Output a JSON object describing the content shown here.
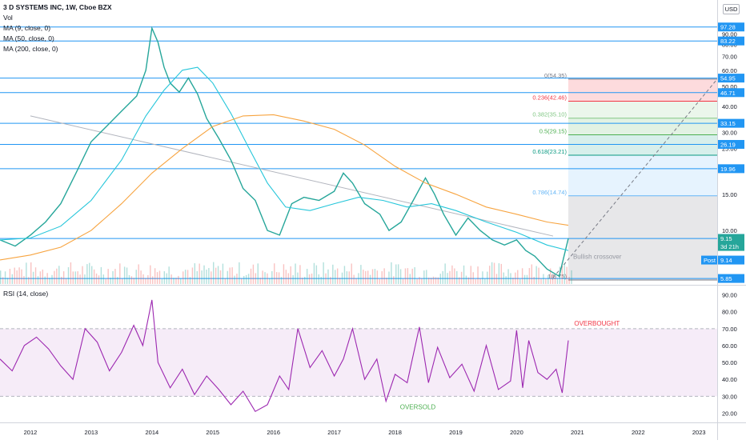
{
  "header": {
    "title": "3 D SYSTEMS INC, 1W, Cboe BZX",
    "indicators": [
      "Vol",
      "MA (9, close, 0)",
      "MA (50, close, 0)",
      "MA (200, close, 0)"
    ],
    "currency": "USD"
  },
  "rsi_header": "RSI (14, close)",
  "chart_data": {
    "type": "line",
    "title": "3 D SYSTEMS INC, 1W, Cboe BZX",
    "x_ticks": [
      "2012",
      "2013",
      "2014",
      "2015",
      "2016",
      "2017",
      "2018",
      "2019",
      "2020",
      "2021",
      "2022",
      "2023"
    ],
    "price_axis": {
      "scale": "log",
      "ticks": [
        "100.00",
        "90.00",
        "80.00",
        "70.00",
        "60.00",
        "50.00",
        "40.00",
        "30.00",
        "25.00",
        "20.00",
        "15.00",
        "10.00"
      ],
      "ylim": [
        5.5,
        110
      ]
    },
    "horizontal_levels": [
      {
        "label": "97.28",
        "value": 97.28
      },
      {
        "label": "83.22",
        "value": 83.22
      },
      {
        "label": "54.95",
        "value": 54.95
      },
      {
        "label": "46.71",
        "value": 46.71
      },
      {
        "label": "33.15",
        "value": 33.15
      },
      {
        "label": "26.19",
        "value": 26.19
      },
      {
        "label": "19.96",
        "value": 19.96
      },
      {
        "label": "9.15",
        "value": 9.15
      },
      {
        "label": "5.85",
        "value": 5.85
      }
    ],
    "price_tags": [
      {
        "label": "9.15",
        "value": 9.15
      },
      {
        "label": "3d 21h",
        "value": 8.2
      },
      {
        "label": "Post",
        "value": 7.2
      },
      {
        "label": "9.14",
        "value": 7.2
      }
    ],
    "fibonacci": [
      {
        "label": "0(54.35)",
        "value": 54.35,
        "color": "#787b86"
      },
      {
        "label": "0.236(42.46)",
        "value": 42.46,
        "color": "#f23645"
      },
      {
        "label": "0.382(35.10)",
        "value": 35.1,
        "color": "#81c784"
      },
      {
        "label": "0.5(29.15)",
        "value": 29.15,
        "color": "#4caf50"
      },
      {
        "label": "0.618(23.21)",
        "value": 23.21,
        "color": "#089981"
      },
      {
        "label": "0.786(14.74)",
        "value": 14.74,
        "color": "#64b5f6"
      },
      {
        "label": "1(5.75)",
        "value": 5.75,
        "color": "#787b86"
      }
    ],
    "annotation": "Bullish crossover",
    "series": [
      {
        "name": "Close",
        "color": "#26a69a",
        "x": [
          2011.5,
          2011.75,
          2012.0,
          2012.25,
          2012.5,
          2012.75,
          2013.0,
          2013.25,
          2013.5,
          2013.75,
          2013.9,
          2014.0,
          2014.1,
          2014.2,
          2014.3,
          2014.45,
          2014.6,
          2014.75,
          2014.9,
          2015.1,
          2015.3,
          2015.5,
          2015.7,
          2015.9,
          2016.1,
          2016.3,
          2016.5,
          2016.75,
          2017.0,
          2017.15,
          2017.3,
          2017.5,
          2017.75,
          2017.9,
          2018.1,
          2018.3,
          2018.5,
          2018.65,
          2018.8,
          2019.0,
          2019.2,
          2019.4,
          2019.6,
          2019.8,
          2020.0,
          2020.15,
          2020.3,
          2020.5,
          2020.7,
          2020.85
        ],
        "values": [
          9.0,
          8.4,
          9.5,
          11.0,
          13.5,
          19.0,
          27.0,
          32.0,
          38.0,
          45.0,
          60.0,
          96.0,
          82.0,
          62.0,
          52.0,
          47.0,
          55.0,
          46.0,
          35.0,
          28.0,
          22.0,
          16.0,
          14.0,
          10.0,
          9.5,
          13.5,
          14.5,
          14.0,
          15.5,
          19.0,
          17.0,
          13.5,
          12.0,
          10.0,
          11.0,
          14.0,
          18.0,
          15.0,
          12.0,
          9.5,
          11.5,
          10.0,
          9.0,
          8.5,
          9.0,
          8.0,
          7.5,
          6.5,
          6.0,
          9.15
        ]
      },
      {
        "name": "MA 50",
        "color": "#26c6da",
        "x": [
          2011.5,
          2012.0,
          2012.5,
          2013.0,
          2013.5,
          2013.9,
          2014.2,
          2014.5,
          2014.75,
          2015.0,
          2015.3,
          2015.6,
          2015.9,
          2016.2,
          2016.6,
          2017.0,
          2017.4,
          2017.8,
          2018.2,
          2018.6,
          2019.0,
          2019.5,
          2020.0,
          2020.5,
          2020.85
        ],
        "values": [
          9.0,
          9.2,
          10.5,
          14.0,
          22.0,
          36.0,
          48.0,
          60.0,
          62.0,
          52.0,
          37.0,
          25.0,
          17.0,
          13.0,
          12.5,
          13.5,
          14.5,
          14.0,
          13.0,
          13.5,
          12.5,
          11.0,
          9.8,
          8.5,
          8.0
        ]
      },
      {
        "name": "MA 200",
        "color": "#f7a440",
        "x": [
          2011.5,
          2012.0,
          2012.5,
          2013.0,
          2013.5,
          2014.0,
          2014.5,
          2015.0,
          2015.5,
          2016.0,
          2016.5,
          2017.0,
          2017.5,
          2018.0,
          2018.5,
          2019.0,
          2019.5,
          2020.0,
          2020.5,
          2020.85
        ],
        "values": [
          7.2,
          7.6,
          8.3,
          10.0,
          13.5,
          19.0,
          25.0,
          32.0,
          36.0,
          36.5,
          34.0,
          31.0,
          26.0,
          20.5,
          17.0,
          15.0,
          13.0,
          12.0,
          11.0,
          10.6
        ]
      }
    ],
    "rsi": {
      "name": "RSI (14, close)",
      "color": "#9c27b0",
      "ylim": [
        15,
        95
      ],
      "ticks": [
        "90.00",
        "80.00",
        "70.00",
        "60.00",
        "50.00",
        "40.00",
        "30.00",
        "20.00"
      ],
      "overbought": 70,
      "oversold": 30,
      "overbought_label": "OVERBOUGHT",
      "oversold_label": "OVERSOLD",
      "x": [
        2011.5,
        2011.7,
        2011.9,
        2012.1,
        2012.3,
        2012.5,
        2012.7,
        2012.9,
        2013.1,
        2013.3,
        2013.5,
        2013.7,
        2013.85,
        2014.0,
        2014.1,
        2014.3,
        2014.5,
        2014.7,
        2014.9,
        2015.1,
        2015.3,
        2015.5,
        2015.7,
        2015.9,
        2016.1,
        2016.25,
        2016.4,
        2016.6,
        2016.8,
        2017.0,
        2017.15,
        2017.3,
        2017.5,
        2017.7,
        2017.85,
        2018.0,
        2018.2,
        2018.4,
        2018.55,
        2018.7,
        2018.9,
        2019.1,
        2019.3,
        2019.5,
        2019.7,
        2019.9,
        2020.0,
        2020.1,
        2020.2,
        2020.35,
        2020.5,
        2020.65,
        2020.75,
        2020.85
      ],
      "values": [
        52,
        45,
        60,
        65,
        58,
        48,
        40,
        70,
        62,
        45,
        56,
        72,
        60,
        87,
        50,
        35,
        46,
        31,
        42,
        34,
        25,
        33,
        21,
        25,
        42,
        34,
        70,
        47,
        57,
        42,
        52,
        70,
        40,
        52,
        27,
        43,
        38,
        71,
        38,
        59,
        41,
        49,
        33,
        60,
        34,
        39,
        69,
        35,
        63,
        44,
        40,
        46,
        32,
        63
      ]
    }
  }
}
